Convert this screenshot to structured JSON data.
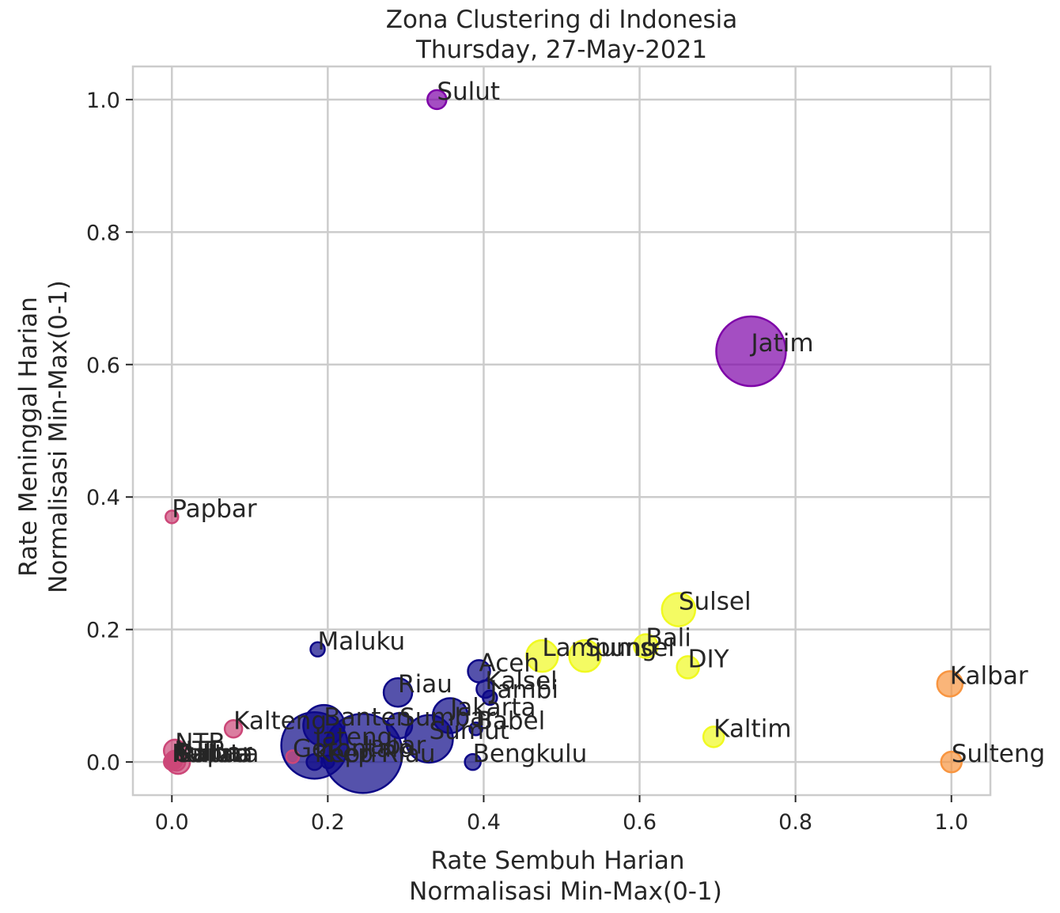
{
  "chart_data": {
    "type": "scatter",
    "title": "Zona Clustering di Indonesia",
    "subtitle": "Thursday, 27-May-2021",
    "xlabel": [
      "Rate Sembuh Harian",
      "Normalisasi Min-Max(0-1)"
    ],
    "ylabel": [
      "Rate Meninggal Harian",
      "Normalisasi Min-Max(0-1)"
    ],
    "xlim": [
      -0.05,
      1.05
    ],
    "ylim": [
      -0.05,
      1.05
    ],
    "xticks": [
      0.0,
      0.2,
      0.4,
      0.6,
      0.8,
      1.0
    ],
    "xtick_labels": [
      "0.0",
      "0.2",
      "0.4",
      "0.6",
      "0.8",
      "1.0"
    ],
    "yticks": [
      0.0,
      0.2,
      0.4,
      0.6,
      0.8,
      1.0
    ],
    "ytick_labels": [
      "0.0",
      "0.2",
      "0.4",
      "0.6",
      "0.8",
      "1.0"
    ],
    "grid": true,
    "colors": {
      "cluster_0": "#0d0887",
      "cluster_1": "#7e03a8",
      "cluster_2": "#cc4778",
      "cluster_3": "#f89540",
      "cluster_4": "#f0f921",
      "grid": "#cccccc",
      "text": "#262626"
    },
    "points": [
      {
        "label": "Sulut",
        "x": 0.34,
        "y": 1.0,
        "size": 12,
        "cluster": "cluster_1"
      },
      {
        "label": "Jatim",
        "x": 0.743,
        "y": 0.62,
        "size": 44,
        "cluster": "cluster_1"
      },
      {
        "label": "Papbar",
        "x": 0.0,
        "y": 0.37,
        "size": 8,
        "cluster": "cluster_2"
      },
      {
        "label": "Sulsel",
        "x": 0.65,
        "y": 0.23,
        "size": 21,
        "cluster": "cluster_4"
      },
      {
        "label": "Bali",
        "x": 0.608,
        "y": 0.175,
        "size": 15,
        "cluster": "cluster_4"
      },
      {
        "label": "Sumsel",
        "x": 0.53,
        "y": 0.16,
        "size": 20,
        "cluster": "cluster_4"
      },
      {
        "label": "Lampung",
        "x": 0.475,
        "y": 0.16,
        "size": 20,
        "cluster": "cluster_4"
      },
      {
        "label": "DIY",
        "x": 0.662,
        "y": 0.143,
        "size": 14,
        "cluster": "cluster_4"
      },
      {
        "label": "Kaltim",
        "x": 0.695,
        "y": 0.038,
        "size": 13,
        "cluster": "cluster_4"
      },
      {
        "label": "Kalbar",
        "x": 0.998,
        "y": 0.118,
        "size": 16,
        "cluster": "cluster_3"
      },
      {
        "label": "Sulteng",
        "x": 1.0,
        "y": 0.0,
        "size": 13,
        "cluster": "cluster_3"
      },
      {
        "label": "Maluku",
        "x": 0.187,
        "y": 0.17,
        "size": 9,
        "cluster": "cluster_0"
      },
      {
        "label": "Aceh",
        "x": 0.394,
        "y": 0.137,
        "size": 14,
        "cluster": "cluster_0"
      },
      {
        "label": "Kalsel",
        "x": 0.402,
        "y": 0.11,
        "size": 11,
        "cluster": "cluster_0"
      },
      {
        "label": "Jambi",
        "x": 0.408,
        "y": 0.097,
        "size": 9,
        "cluster": "cluster_0"
      },
      {
        "label": "Riau",
        "x": 0.29,
        "y": 0.105,
        "size": 18,
        "cluster": "cluster_0"
      },
      {
        "label": "Jakarta",
        "x": 0.357,
        "y": 0.07,
        "size": 22,
        "cluster": "cluster_0"
      },
      {
        "label": "Babel",
        "x": 0.39,
        "y": 0.05,
        "size": 8,
        "cluster": "cluster_0"
      },
      {
        "label": "Sumbar",
        "x": 0.292,
        "y": 0.055,
        "size": 16,
        "cluster": "cluster_0"
      },
      {
        "label": "Sumut",
        "x": 0.33,
        "y": 0.035,
        "size": 30,
        "cluster": "cluster_0"
      },
      {
        "label": "Banten",
        "x": 0.195,
        "y": 0.055,
        "size": 26,
        "cluster": "cluster_0"
      },
      {
        "label": "Jateng",
        "x": 0.183,
        "y": 0.025,
        "size": 42,
        "cluster": "cluster_0"
      },
      {
        "label": "Jabar",
        "x": 0.245,
        "y": 0.013,
        "size": 50,
        "cluster": "cluster_0"
      },
      {
        "label": "Kepri",
        "x": 0.183,
        "y": 0.0,
        "size": 10,
        "cluster": "cluster_0"
      },
      {
        "label": "Kep Riau",
        "x": 0.2,
        "y": 0.0,
        "size": 8,
        "cluster": "cluster_0"
      },
      {
        "label": "Bengkulu",
        "x": 0.386,
        "y": 0.0,
        "size": 10,
        "cluster": "cluster_0"
      },
      {
        "label": "Kalteng",
        "x": 0.079,
        "y": 0.05,
        "size": 11,
        "cluster": "cluster_2"
      },
      {
        "label": "Gorontalo",
        "x": 0.155,
        "y": 0.008,
        "size": 8,
        "cluster": "cluster_2"
      },
      {
        "label": "NTB",
        "x": 0.004,
        "y": 0.017,
        "size": 14,
        "cluster": "cluster_2"
      },
      {
        "label": "NTT",
        "x": 0.003,
        "y": 0.005,
        "size": 10,
        "cluster": "cluster_2"
      },
      {
        "label": "Sulbar",
        "x": 0.002,
        "y": 0.002,
        "size": 11,
        "cluster": "cluster_2"
      },
      {
        "label": "Malut",
        "x": 0.0,
        "y": 0.0,
        "size": 10,
        "cluster": "cluster_2"
      },
      {
        "label": "Kaltara",
        "x": 0.0,
        "y": 0.0,
        "size": 9,
        "cluster": "cluster_2"
      },
      {
        "label": "Papua",
        "x": 0.008,
        "y": 0.0,
        "size": 15,
        "cluster": "cluster_2"
      },
      {
        "label": "Sultra",
        "x": 0.006,
        "y": 0.0,
        "size": 11,
        "cluster": "cluster_2"
      }
    ]
  }
}
